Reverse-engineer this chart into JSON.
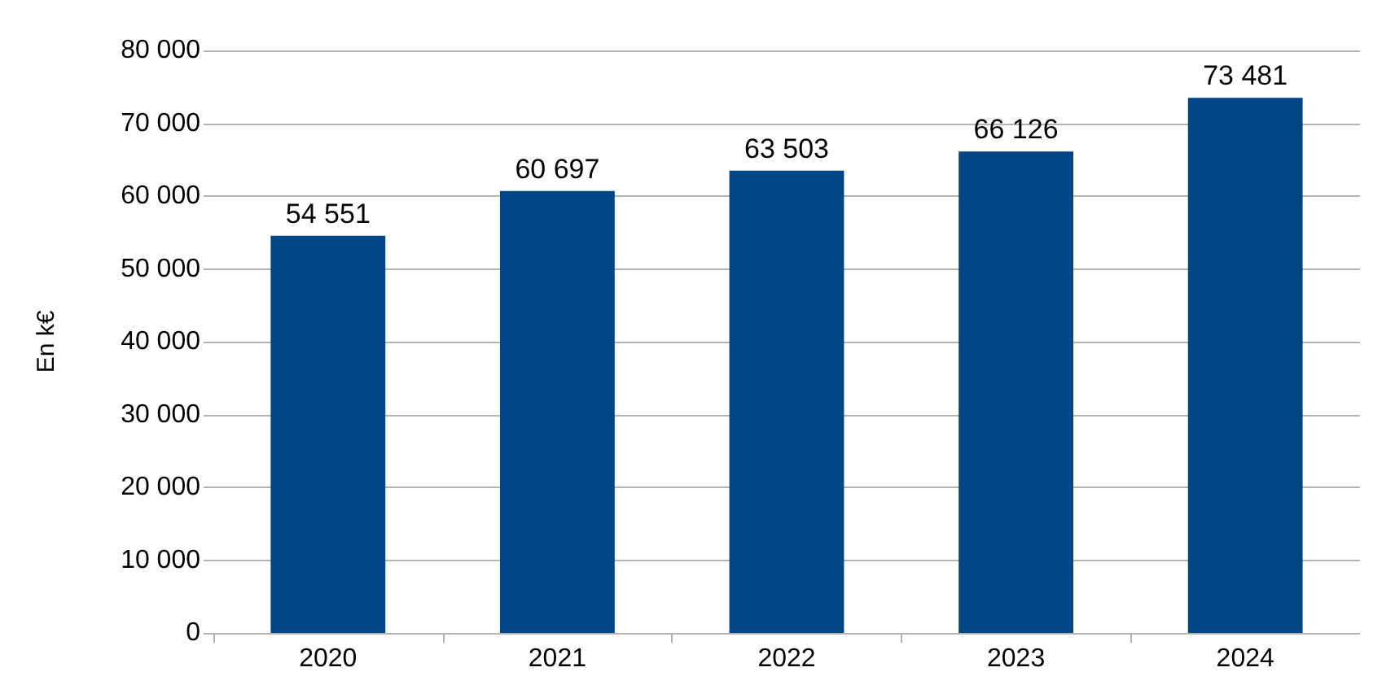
{
  "chart_data": {
    "type": "bar",
    "ylabel": "En k€",
    "categories": [
      "2020",
      "2021",
      "2022",
      "2023",
      "2024"
    ],
    "series": [
      {
        "color": "#004586",
        "values": [
          54551,
          60697,
          63503,
          66126,
          73481
        ],
        "value_labels": [
          "54 551",
          "60 697",
          "63 503",
          "66 126",
          "73 481"
        ]
      }
    ],
    "ylim": [
      0,
      80000
    ],
    "yticks": [
      {
        "value": 0,
        "label": "0"
      },
      {
        "value": 10000,
        "label": "10 000"
      },
      {
        "value": 20000,
        "label": "20 000"
      },
      {
        "value": 30000,
        "label": "30 000"
      },
      {
        "value": 40000,
        "label": "40 000"
      },
      {
        "value": 50000,
        "label": "50 000"
      },
      {
        "value": 60000,
        "label": "60 000"
      },
      {
        "value": 70000,
        "label": "70 000"
      },
      {
        "value": 80000,
        "label": "80 000"
      }
    ],
    "grid": "y"
  }
}
